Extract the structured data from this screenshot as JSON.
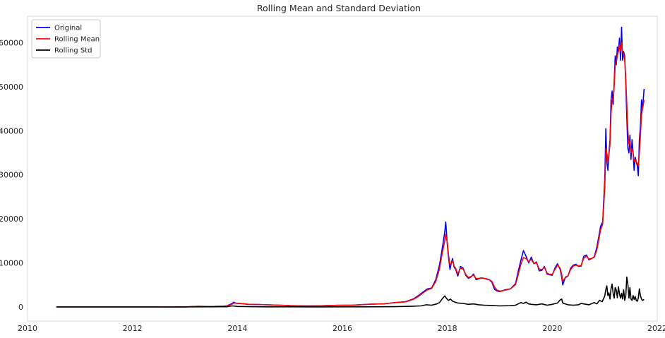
{
  "chart_data": {
    "type": "line",
    "title": "Rolling Mean and Standard Deviation",
    "xlabel": "",
    "ylabel": "",
    "xlim": [
      2010.0,
      2022.0
    ],
    "ylim": [
      -3200,
      66000
    ],
    "x_ticks": [
      2010,
      2012,
      2014,
      2016,
      2018,
      2020,
      2022
    ],
    "y_ticks": [
      0,
      10000,
      20000,
      30000,
      40000,
      50000,
      60000
    ],
    "grid": false,
    "legend_position": "top-left",
    "series": [
      {
        "name": "Original",
        "color": "#0000ff",
        "x": [
          2010.55,
          2011.0,
          2011.5,
          2012.0,
          2012.5,
          2013.0,
          2013.25,
          2013.5,
          2013.8,
          2013.9,
          2013.93,
          2013.96,
          2014.0,
          2014.1,
          2014.2,
          2014.4,
          2014.6,
          2014.8,
          2015.0,
          2015.3,
          2015.6,
          2015.9,
          2016.2,
          2016.5,
          2016.8,
          2017.0,
          2017.2,
          2017.35,
          2017.45,
          2017.55,
          2017.62,
          2017.7,
          2017.78,
          2017.85,
          2017.9,
          2017.95,
          2017.97,
          2018.0,
          2018.02,
          2018.05,
          2018.08,
          2018.1,
          2018.13,
          2018.16,
          2018.2,
          2018.25,
          2018.3,
          2018.35,
          2018.4,
          2018.45,
          2018.5,
          2018.55,
          2018.6,
          2018.65,
          2018.7,
          2018.75,
          2018.8,
          2018.85,
          2018.9,
          2018.95,
          2019.0,
          2019.1,
          2019.2,
          2019.3,
          2019.35,
          2019.4,
          2019.45,
          2019.5,
          2019.55,
          2019.6,
          2019.65,
          2019.7,
          2019.75,
          2019.8,
          2019.85,
          2019.9,
          2019.95,
          2020.0,
          2020.05,
          2020.1,
          2020.15,
          2020.18,
          2020.2,
          2020.25,
          2020.3,
          2020.35,
          2020.4,
          2020.45,
          2020.5,
          2020.55,
          2020.6,
          2020.65,
          2020.7,
          2020.75,
          2020.8,
          2020.85,
          2020.88,
          2020.92,
          2020.96,
          2021.0,
          2021.02,
          2021.04,
          2021.06,
          2021.08,
          2021.1,
          2021.12,
          2021.14,
          2021.16,
          2021.18,
          2021.2,
          2021.22,
          2021.24,
          2021.26,
          2021.28,
          2021.3,
          2021.32,
          2021.34,
          2021.36,
          2021.38,
          2021.4,
          2021.42,
          2021.44,
          2021.46,
          2021.48,
          2021.5,
          2021.52,
          2021.54,
          2021.56,
          2021.58,
          2021.6,
          2021.62,
          2021.64,
          2021.66,
          2021.68,
          2021.7,
          2021.72,
          2021.75
        ],
        "values": [
          0,
          5,
          10,
          6,
          8,
          15,
          140,
          100,
          250,
          800,
          1100,
          900,
          800,
          750,
          600,
          550,
          480,
          400,
          300,
          240,
          270,
          380,
          420,
          620,
          730,
          1000,
          1200,
          1800,
          2600,
          3500,
          4100,
          4300,
          6200,
          9500,
          13000,
          17000,
          19300,
          14000,
          11500,
          8500,
          10200,
          11000,
          9000,
          8500,
          7000,
          9200,
          8800,
          7200,
          6500,
          6800,
          7500,
          6200,
          6400,
          6600,
          6500,
          6300,
          6200,
          5600,
          4000,
          3600,
          3500,
          3900,
          4100,
          5300,
          8000,
          10500,
          12800,
          11500,
          10000,
          11300,
          9800,
          10200,
          8200,
          8300,
          9200,
          7500,
          7300,
          7200,
          8800,
          9800,
          8500,
          6800,
          5000,
          6800,
          7000,
          8800,
          9500,
          9700,
          9200,
          9300,
          11500,
          11800,
          10700,
          11000,
          11400,
          13600,
          15500,
          18300,
          19300,
          29000,
          40500,
          33000,
          31000,
          35000,
          38000,
          47000,
          49000,
          46000,
          51000,
          57000,
          55000,
          59000,
          58000,
          61000,
          56000,
          63500,
          56000,
          58000,
          57000,
          51000,
          43000,
          36000,
          35000,
          39000,
          33500,
          38000,
          35000,
          31000,
          34000,
          33000,
          32000,
          29800,
          38000,
          41000,
          47000,
          45000,
          49500
        ]
      },
      {
        "name": "Rolling Mean",
        "color": "#ff0000",
        "x": [
          2010.55,
          2011.0,
          2011.5,
          2012.0,
          2012.5,
          2013.0,
          2013.25,
          2013.5,
          2013.8,
          2013.9,
          2013.93,
          2013.96,
          2014.0,
          2014.1,
          2014.2,
          2014.4,
          2014.6,
          2014.8,
          2015.0,
          2015.3,
          2015.6,
          2015.9,
          2016.2,
          2016.5,
          2016.8,
          2017.0,
          2017.2,
          2017.35,
          2017.45,
          2017.55,
          2017.62,
          2017.7,
          2017.78,
          2017.85,
          2017.9,
          2017.95,
          2017.97,
          2018.0,
          2018.02,
          2018.05,
          2018.08,
          2018.1,
          2018.13,
          2018.16,
          2018.2,
          2018.25,
          2018.3,
          2018.35,
          2018.4,
          2018.45,
          2018.5,
          2018.55,
          2018.6,
          2018.65,
          2018.7,
          2018.75,
          2018.8,
          2018.85,
          2018.9,
          2018.95,
          2019.0,
          2019.1,
          2019.2,
          2019.3,
          2019.35,
          2019.4,
          2019.45,
          2019.5,
          2019.55,
          2019.6,
          2019.65,
          2019.7,
          2019.75,
          2019.8,
          2019.85,
          2019.9,
          2019.95,
          2020.0,
          2020.05,
          2020.1,
          2020.15,
          2020.18,
          2020.2,
          2020.25,
          2020.3,
          2020.35,
          2020.4,
          2020.45,
          2020.5,
          2020.55,
          2020.6,
          2020.65,
          2020.7,
          2020.75,
          2020.8,
          2020.85,
          2020.88,
          2020.92,
          2020.96,
          2021.0,
          2021.02,
          2021.04,
          2021.06,
          2021.08,
          2021.1,
          2021.12,
          2021.14,
          2021.16,
          2021.18,
          2021.2,
          2021.22,
          2021.24,
          2021.26,
          2021.28,
          2021.3,
          2021.32,
          2021.34,
          2021.36,
          2021.38,
          2021.4,
          2021.42,
          2021.44,
          2021.46,
          2021.48,
          2021.5,
          2021.52,
          2021.54,
          2021.56,
          2021.58,
          2021.6,
          2021.62,
          2021.64,
          2021.66,
          2021.68,
          2021.7,
          2021.72,
          2021.75
        ],
        "values": [
          0,
          5,
          10,
          6,
          8,
          15,
          130,
          100,
          220,
          650,
          900,
          850,
          820,
          760,
          620,
          560,
          490,
          410,
          310,
          250,
          270,
          370,
          410,
          610,
          720,
          980,
          1150,
          1700,
          2400,
          3300,
          3900,
          4200,
          5800,
          8600,
          12000,
          15000,
          16500,
          14500,
          12000,
          9500,
          10000,
          10500,
          9300,
          8700,
          7500,
          8800,
          8600,
          7400,
          6700,
          6900,
          7300,
          6400,
          6500,
          6600,
          6500,
          6400,
          6200,
          5800,
          4500,
          3800,
          3600,
          3800,
          4100,
          5100,
          7300,
          9600,
          11200,
          11000,
          10300,
          10800,
          9900,
          10000,
          8600,
          8500,
          9000,
          7700,
          7400,
          7400,
          8500,
          9500,
          8800,
          7400,
          5900,
          6600,
          7100,
          8500,
          9300,
          9500,
          9300,
          9400,
          11100,
          11500,
          10900,
          11000,
          11300,
          13000,
          14800,
          17500,
          18800,
          27000,
          36000,
          35000,
          33000,
          34500,
          37000,
          44000,
          47000,
          47000,
          50000,
          55000,
          55500,
          57000,
          58000,
          59500,
          58000,
          60000,
          58000,
          57500,
          56000,
          52000,
          46000,
          40000,
          37000,
          37500,
          35000,
          36000,
          35000,
          33000,
          33500,
          33000,
          32500,
          32000,
          35000,
          39000,
          43500,
          45000,
          47000
        ]
      },
      {
        "name": "Rolling Std",
        "color": "#000000",
        "x": [
          2010.55,
          2011.0,
          2012.0,
          2013.0,
          2013.8,
          2013.9,
          2014.0,
          2014.5,
          2015.0,
          2015.5,
          2016.0,
          2016.5,
          2017.0,
          2017.3,
          2017.5,
          2017.6,
          2017.7,
          2017.8,
          2017.85,
          2017.9,
          2017.95,
          2017.98,
          2018.02,
          2018.06,
          2018.1,
          2018.15,
          2018.2,
          2018.3,
          2018.4,
          2018.5,
          2018.6,
          2018.7,
          2018.8,
          2018.9,
          2019.0,
          2019.2,
          2019.3,
          2019.35,
          2019.4,
          2019.45,
          2019.5,
          2019.55,
          2019.6,
          2019.7,
          2019.8,
          2019.9,
          2020.0,
          2020.1,
          2020.15,
          2020.18,
          2020.2,
          2020.25,
          2020.3,
          2020.4,
          2020.5,
          2020.55,
          2020.6,
          2020.7,
          2020.8,
          2020.85,
          2020.9,
          2020.95,
          2021.0,
          2021.02,
          2021.04,
          2021.06,
          2021.08,
          2021.1,
          2021.12,
          2021.14,
          2021.16,
          2021.18,
          2021.2,
          2021.22,
          2021.24,
          2021.26,
          2021.28,
          2021.3,
          2021.32,
          2021.34,
          2021.36,
          2021.38,
          2021.4,
          2021.42,
          2021.44,
          2021.46,
          2021.48,
          2021.5,
          2021.52,
          2021.54,
          2021.56,
          2021.58,
          2021.6,
          2021.62,
          2021.64,
          2021.66,
          2021.68,
          2021.7,
          2021.72,
          2021.75
        ],
        "values": [
          0,
          0,
          0,
          0,
          50,
          250,
          120,
          40,
          30,
          25,
          30,
          40,
          70,
          150,
          250,
          500,
          400,
          700,
          1000,
          1800,
          2500,
          2000,
          1500,
          1800,
          1300,
          1100,
          900,
          800,
          600,
          700,
          500,
          400,
          350,
          300,
          250,
          300,
          400,
          700,
          1000,
          800,
          1100,
          700,
          600,
          500,
          700,
          400,
          600,
          900,
          1600,
          1800,
          900,
          700,
          500,
          400,
          500,
          800,
          700,
          500,
          1000,
          700,
          1500,
          1200,
          2500,
          4000,
          4800,
          2600,
          3200,
          1800,
          4200,
          5200,
          3000,
          2000,
          4400,
          3800,
          2100,
          4600,
          3000,
          2000,
          3100,
          1800,
          3900,
          1500,
          2500,
          6800,
          5200,
          2000,
          4400,
          1800,
          1500,
          2600,
          1700,
          2400,
          1500,
          1300,
          2000,
          4100,
          2600,
          1800,
          1500,
          1700
        ]
      }
    ]
  }
}
